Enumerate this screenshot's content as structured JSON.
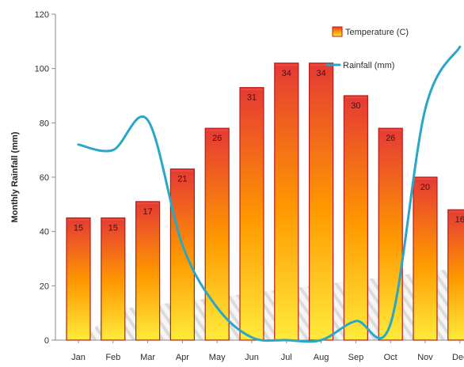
{
  "chart_data": {
    "type": "bar",
    "title": "",
    "xlabel": "",
    "ylabel": "Monthly Rainfall (mm)",
    "categories": [
      "Jan",
      "Feb",
      "Mar",
      "Apr",
      "May",
      "Jun",
      "Jul",
      "Aug",
      "Sep",
      "Oct",
      "Nov",
      "Dec"
    ],
    "ylim": [
      0,
      120
    ],
    "yticks": [
      0,
      20,
      40,
      60,
      80,
      100,
      120
    ],
    "grid": false,
    "legend_position": "top-right",
    "series": [
      {
        "name": "Temperature (C)",
        "type": "bar",
        "values": [
          15,
          15,
          17,
          21,
          26,
          31,
          34,
          34,
          30,
          26,
          20,
          16
        ],
        "bar_heights_mm": [
          45,
          45,
          51,
          63,
          78,
          93,
          102,
          102,
          90,
          78,
          60,
          48
        ],
        "colors": [
          "#ffeb3b",
          "#ff9800",
          "#e53935"
        ]
      },
      {
        "name": "Rainfall (mm)",
        "type": "line",
        "values": [
          72,
          70,
          81,
          35,
          12,
          1,
          0,
          0,
          7,
          6,
          85,
          108
        ],
        "color": "#2aa7c7"
      }
    ]
  }
}
